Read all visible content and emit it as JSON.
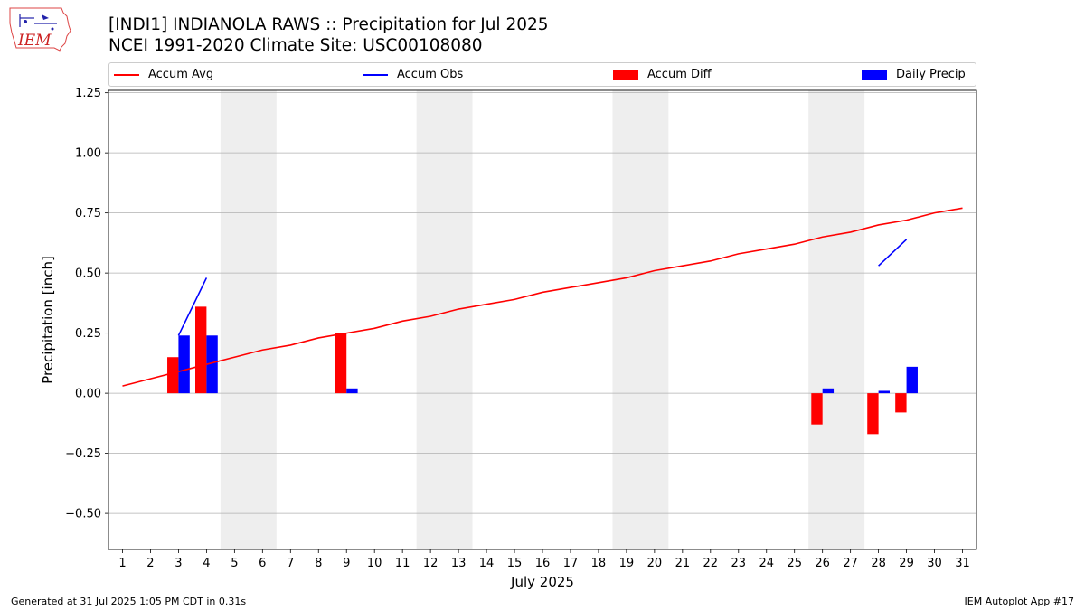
{
  "header": {
    "title": "[INDI1] INDIANOLA RAWS :: Precipitation for Jul 2025",
    "subtitle": "NCEI 1991-2020 Climate Site: USC00108080"
  },
  "logo": {
    "text": "IEM",
    "icon": "iowa-state-logo-icon"
  },
  "legend": [
    {
      "label": "Accum Avg",
      "kind": "line",
      "color": "#ff0000"
    },
    {
      "label": "Accum Obs",
      "kind": "line",
      "color": "#0000ff"
    },
    {
      "label": "Accum Diff",
      "kind": "bar",
      "color": "#ff0000"
    },
    {
      "label": "Daily Precip",
      "kind": "bar",
      "color": "#0000ff"
    }
  ],
  "footer": {
    "generated": "Generated at 31 Jul 2025 1:05 PM CDT in 0.31s",
    "app": "IEM Autoplot App #17"
  },
  "chart_data": {
    "type": "bar",
    "xlabel": "July 2025",
    "ylabel": "Precipitation [inch]",
    "ylim": [
      -0.65,
      1.26
    ],
    "xlim": [
      0.5,
      31.5
    ],
    "yticks": [
      -0.5,
      -0.25,
      0.0,
      0.25,
      0.5,
      0.75,
      1.0,
      1.25
    ],
    "ytick_labels": [
      "−0.50",
      "−0.25",
      "0.00",
      "0.25",
      "0.50",
      "0.75",
      "1.00",
      "1.25"
    ],
    "days": [
      1,
      2,
      3,
      4,
      5,
      6,
      7,
      8,
      9,
      10,
      11,
      12,
      13,
      14,
      15,
      16,
      17,
      18,
      19,
      20,
      21,
      22,
      23,
      24,
      25,
      26,
      27,
      28,
      29,
      30,
      31
    ],
    "grid": "horizontal",
    "weekend_shading": [
      [
        5,
        6
      ],
      [
        12,
        13
      ],
      [
        19,
        20
      ],
      [
        26,
        27
      ]
    ],
    "weekend_color": "#eeeeee",
    "series": [
      {
        "name": "Accum Avg",
        "kind": "line",
        "color": "#ff0000",
        "x": [
          1,
          2,
          3,
          4,
          5,
          6,
          7,
          8,
          9,
          10,
          11,
          12,
          13,
          14,
          15,
          16,
          17,
          18,
          19,
          20,
          21,
          22,
          23,
          24,
          25,
          26,
          27,
          28,
          29,
          30,
          31
        ],
        "values": [
          0.03,
          0.06,
          0.09,
          0.12,
          0.15,
          0.18,
          0.2,
          0.23,
          0.25,
          0.27,
          0.3,
          0.32,
          0.35,
          0.37,
          0.39,
          0.42,
          0.44,
          0.46,
          0.48,
          0.51,
          0.53,
          0.55,
          0.58,
          0.6,
          0.62,
          0.65,
          0.67,
          0.7,
          0.72,
          0.75,
          0.77
        ]
      },
      {
        "name": "Accum Obs",
        "kind": "line",
        "color": "#0000ff",
        "segments": [
          {
            "x": [
              3,
              4
            ],
            "values": [
              0.24,
              0.48
            ]
          },
          {
            "x": [
              28,
              29
            ],
            "values": [
              0.53,
              0.64
            ]
          }
        ]
      },
      {
        "name": "Accum Diff",
        "kind": "bar",
        "color": "#ff0000",
        "x": [
          3,
          4,
          9,
          26,
          28,
          29
        ],
        "values": [
          0.15,
          0.36,
          0.25,
          -0.13,
          -0.17,
          -0.08
        ]
      },
      {
        "name": "Daily Precip",
        "kind": "bar",
        "color": "#0000ff",
        "x": [
          3,
          4,
          9,
          26,
          28,
          29
        ],
        "values": [
          0.24,
          0.24,
          0.02,
          0.02,
          0.01,
          0.11
        ]
      }
    ]
  }
}
